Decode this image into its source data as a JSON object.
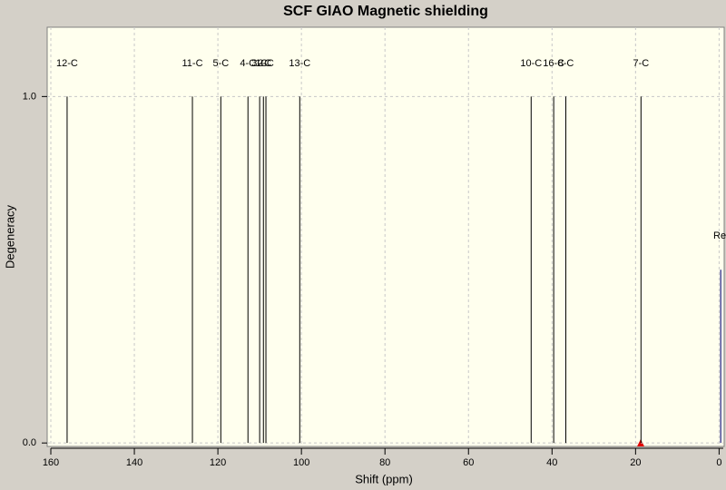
{
  "chart_data": {
    "type": "stick",
    "title": "SCF GIAO Magnetic shielding",
    "x_label": "Shift (ppm)",
    "y_label": "Degeneracy",
    "labels": [
      "12-C",
      "11-C",
      "5-C",
      "4-C",
      "3-C",
      "1-C",
      "2-C",
      "13-C",
      "10-C",
      "16-C",
      "8-C",
      "7-C"
    ],
    "x": [
      156.1,
      126.1,
      119.3,
      112.8,
      110.0,
      109.1,
      108.5,
      100.4,
      45.0,
      39.6,
      36.7,
      18.7
    ],
    "values": [
      1,
      1,
      1,
      1,
      1,
      1,
      1,
      1,
      1,
      1,
      1,
      1
    ],
    "color": "#000000",
    "reference": {
      "label": "Re",
      "x": -0.4,
      "value": 0.5,
      "color": "#4a4a9a"
    },
    "xlim": [
      160,
      -1
    ],
    "ylim": [
      -0.01,
      1.2
    ],
    "xticks": [
      160,
      140,
      120,
      100,
      80,
      60,
      40,
      20,
      0
    ],
    "yticks": [
      {
        "value": 0,
        "label": "0.0"
      },
      {
        "value": 1,
        "label": "1.0"
      }
    ],
    "grid": true
  }
}
